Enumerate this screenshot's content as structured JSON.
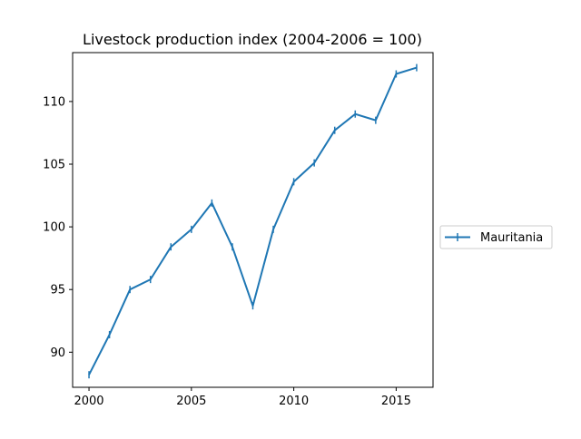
{
  "chart_data": {
    "type": "line",
    "title": "Livestock production index (2004-2006 = 100)",
    "xlabel": "",
    "ylabel": "",
    "xlim": [
      1999.2,
      2016.8
    ],
    "ylim": [
      87.2,
      113.9
    ],
    "x_ticks": [
      2000,
      2005,
      2010,
      2015
    ],
    "y_ticks": [
      90,
      95,
      100,
      105,
      110
    ],
    "grid": false,
    "legend_position": "center-right-outside",
    "series": [
      {
        "name": "Mauritania",
        "color": "#1f77b4",
        "marker": "vertical-line",
        "x": [
          2000,
          2001,
          2002,
          2003,
          2004,
          2005,
          2006,
          2007,
          2008,
          2009,
          2010,
          2011,
          2012,
          2013,
          2014,
          2015,
          2016
        ],
        "values": [
          88.2,
          91.4,
          95.0,
          95.8,
          98.4,
          99.8,
          101.9,
          98.4,
          93.7,
          99.8,
          103.6,
          105.1,
          107.7,
          109.0,
          108.5,
          112.2,
          112.7
        ]
      }
    ]
  }
}
